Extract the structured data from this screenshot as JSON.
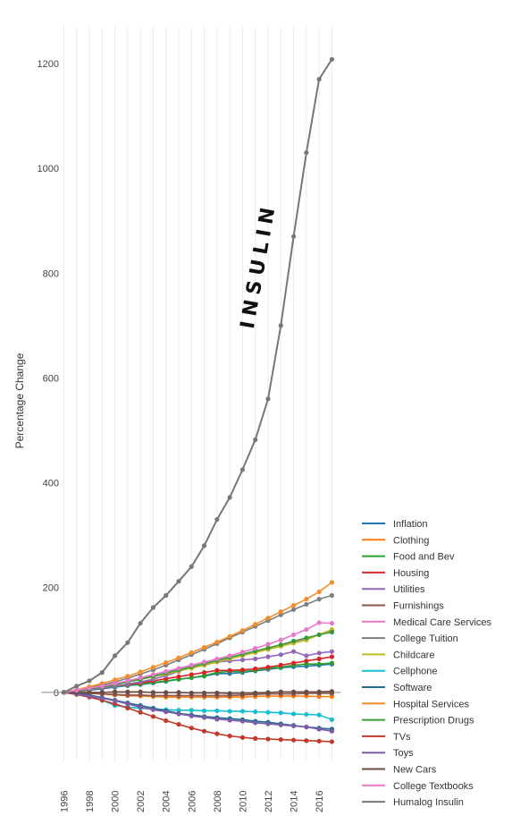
{
  "chart_data": {
    "type": "line",
    "title": "",
    "xlabel": "",
    "ylabel": "Percentage Change",
    "x": [
      1996,
      1997,
      1998,
      1999,
      2000,
      2001,
      2002,
      2003,
      2004,
      2005,
      2006,
      2007,
      2008,
      2009,
      2010,
      2011,
      2012,
      2013,
      2014,
      2015,
      2016,
      2017
    ],
    "x_ticks": [
      1996,
      1998,
      2000,
      2002,
      2004,
      2006,
      2008,
      2010,
      2012,
      2014,
      2016
    ],
    "y_ticks": [
      0,
      200,
      400,
      600,
      800,
      1000,
      1200
    ],
    "ylim": [
      -130,
      1270
    ],
    "xlim": [
      1995.2,
      2018.3
    ],
    "grid": "vertical",
    "legend": "bottom-right",
    "annotation": "INSULIN",
    "series": [
      {
        "name": "Inflation",
        "color": "#1f77b4",
        "values": [
          0,
          2,
          4,
          7,
          10,
          13,
          15,
          18,
          21,
          25,
          28,
          31,
          36,
          36,
          38,
          41,
          44,
          47,
          49,
          50,
          52,
          54
        ]
      },
      {
        "name": "Clothing",
        "color": "#ff7f0e",
        "values": [
          0,
          -1,
          -2,
          -3,
          -5,
          -6,
          -7,
          -8,
          -9,
          -9,
          -9,
          -9,
          -9,
          -9,
          -9,
          -8,
          -7,
          -7,
          -7,
          -7,
          -8,
          -8
        ]
      },
      {
        "name": "Food and Bev",
        "color": "#2ca02c",
        "values": [
          0,
          2,
          5,
          8,
          11,
          14,
          16,
          19,
          22,
          25,
          28,
          32,
          38,
          40,
          40,
          42,
          46,
          48,
          52,
          54,
          54,
          56
        ]
      },
      {
        "name": "Housing",
        "color": "#d62728",
        "values": [
          0,
          2,
          5,
          8,
          12,
          15,
          18,
          22,
          26,
          30,
          34,
          38,
          42,
          42,
          43,
          45,
          48,
          52,
          56,
          60,
          64,
          68
        ]
      },
      {
        "name": "Utilities",
        "color": "#9467bd",
        "values": [
          0,
          3,
          5,
          8,
          12,
          16,
          20,
          25,
          32,
          40,
          48,
          52,
          58,
          60,
          62,
          64,
          68,
          72,
          78,
          70,
          75,
          78
        ]
      },
      {
        "name": "Furnishings",
        "color": "#8c564b",
        "values": [
          0,
          -1,
          -2,
          -3,
          -4,
          -5,
          -5,
          -6,
          -6,
          -6,
          -6,
          -6,
          -6,
          -6,
          -5,
          -4,
          -3,
          -3,
          -3,
          -2,
          -2,
          -2
        ]
      },
      {
        "name": "Medical Care Services",
        "color": "#e377c2",
        "values": [
          0,
          3,
          7,
          11,
          15,
          20,
          25,
          30,
          35,
          41,
          47,
          53,
          60,
          66,
          72,
          78,
          84,
          90,
          96,
          102,
          110,
          118
        ]
      },
      {
        "name": "College Tuition",
        "color": "#7f7f7f",
        "values": [
          0,
          4,
          9,
          14,
          20,
          27,
          35,
          43,
          52,
          62,
          72,
          82,
          93,
          104,
          115,
          126,
          137,
          148,
          158,
          168,
          178,
          185
        ]
      },
      {
        "name": "Childcare",
        "color": "#bcbd22",
        "values": [
          0,
          3,
          7,
          11,
          15,
          20,
          25,
          30,
          35,
          41,
          46,
          52,
          58,
          64,
          70,
          76,
          82,
          88,
          94,
          100,
          110,
          120
        ]
      },
      {
        "name": "Cellphone",
        "color": "#17becf",
        "values": [
          0,
          -3,
          -8,
          -15,
          -25,
          -28,
          -30,
          -32,
          -33,
          -34,
          -34,
          -35,
          -35,
          -36,
          -36,
          -37,
          -38,
          -39,
          -41,
          -42,
          -43,
          -52
        ]
      },
      {
        "name": "Software",
        "color": "#1b6f8f",
        "values": [
          0,
          -2,
          -5,
          -10,
          -15,
          -20,
          -25,
          -30,
          -35,
          -40,
          -43,
          -46,
          -48,
          -50,
          -52,
          -55,
          -57,
          -60,
          -63,
          -66,
          -68,
          -70
        ]
      },
      {
        "name": "Hospital Services",
        "color": "#f28e2b",
        "values": [
          0,
          5,
          11,
          17,
          24,
          31,
          39,
          48,
          57,
          66,
          76,
          86,
          96,
          107,
          118,
          130,
          142,
          154,
          166,
          178,
          192,
          210
        ]
      },
      {
        "name": "Prescription Drugs",
        "color": "#3a9a3a",
        "values": [
          0,
          3,
          6,
          10,
          15,
          20,
          25,
          31,
          37,
          43,
          49,
          55,
          61,
          67,
          73,
          79,
          85,
          91,
          98,
          104,
          110,
          115
        ]
      },
      {
        "name": "TVs",
        "color": "#c0392b",
        "values": [
          0,
          -4,
          -9,
          -15,
          -22,
          -30,
          -38,
          -46,
          -54,
          -61,
          -68,
          -74,
          -79,
          -83,
          -86,
          -88,
          -89,
          -90,
          -91,
          -92,
          -93,
          -94
        ]
      },
      {
        "name": "Toys",
        "color": "#7d5ba6",
        "values": [
          0,
          -3,
          -7,
          -11,
          -16,
          -22,
          -28,
          -33,
          -37,
          -41,
          -45,
          -48,
          -51,
          -53,
          -55,
          -58,
          -60,
          -62,
          -64,
          -66,
          -70,
          -74
        ]
      },
      {
        "name": "New Cars",
        "color": "#6d4c41",
        "values": [
          0,
          0,
          0,
          0,
          1,
          1,
          1,
          0,
          0,
          0,
          -1,
          -1,
          -1,
          -2,
          -2,
          -1,
          0,
          1,
          1,
          1,
          1,
          2
        ]
      },
      {
        "name": "College Textbooks",
        "color": "#e879c9",
        "values": [
          0,
          4,
          8,
          12,
          17,
          22,
          28,
          34,
          40,
          46,
          52,
          58,
          64,
          70,
          77,
          84,
          92,
          100,
          110,
          120,
          133,
          132
        ]
      },
      {
        "name": "Humalog Insulin",
        "color": "#777777",
        "values": [
          0,
          12,
          22,
          38,
          70,
          95,
          132,
          162,
          185,
          212,
          240,
          280,
          330,
          372,
          425,
          482,
          560,
          700,
          870,
          1030,
          1170,
          1208
        ]
      }
    ]
  }
}
